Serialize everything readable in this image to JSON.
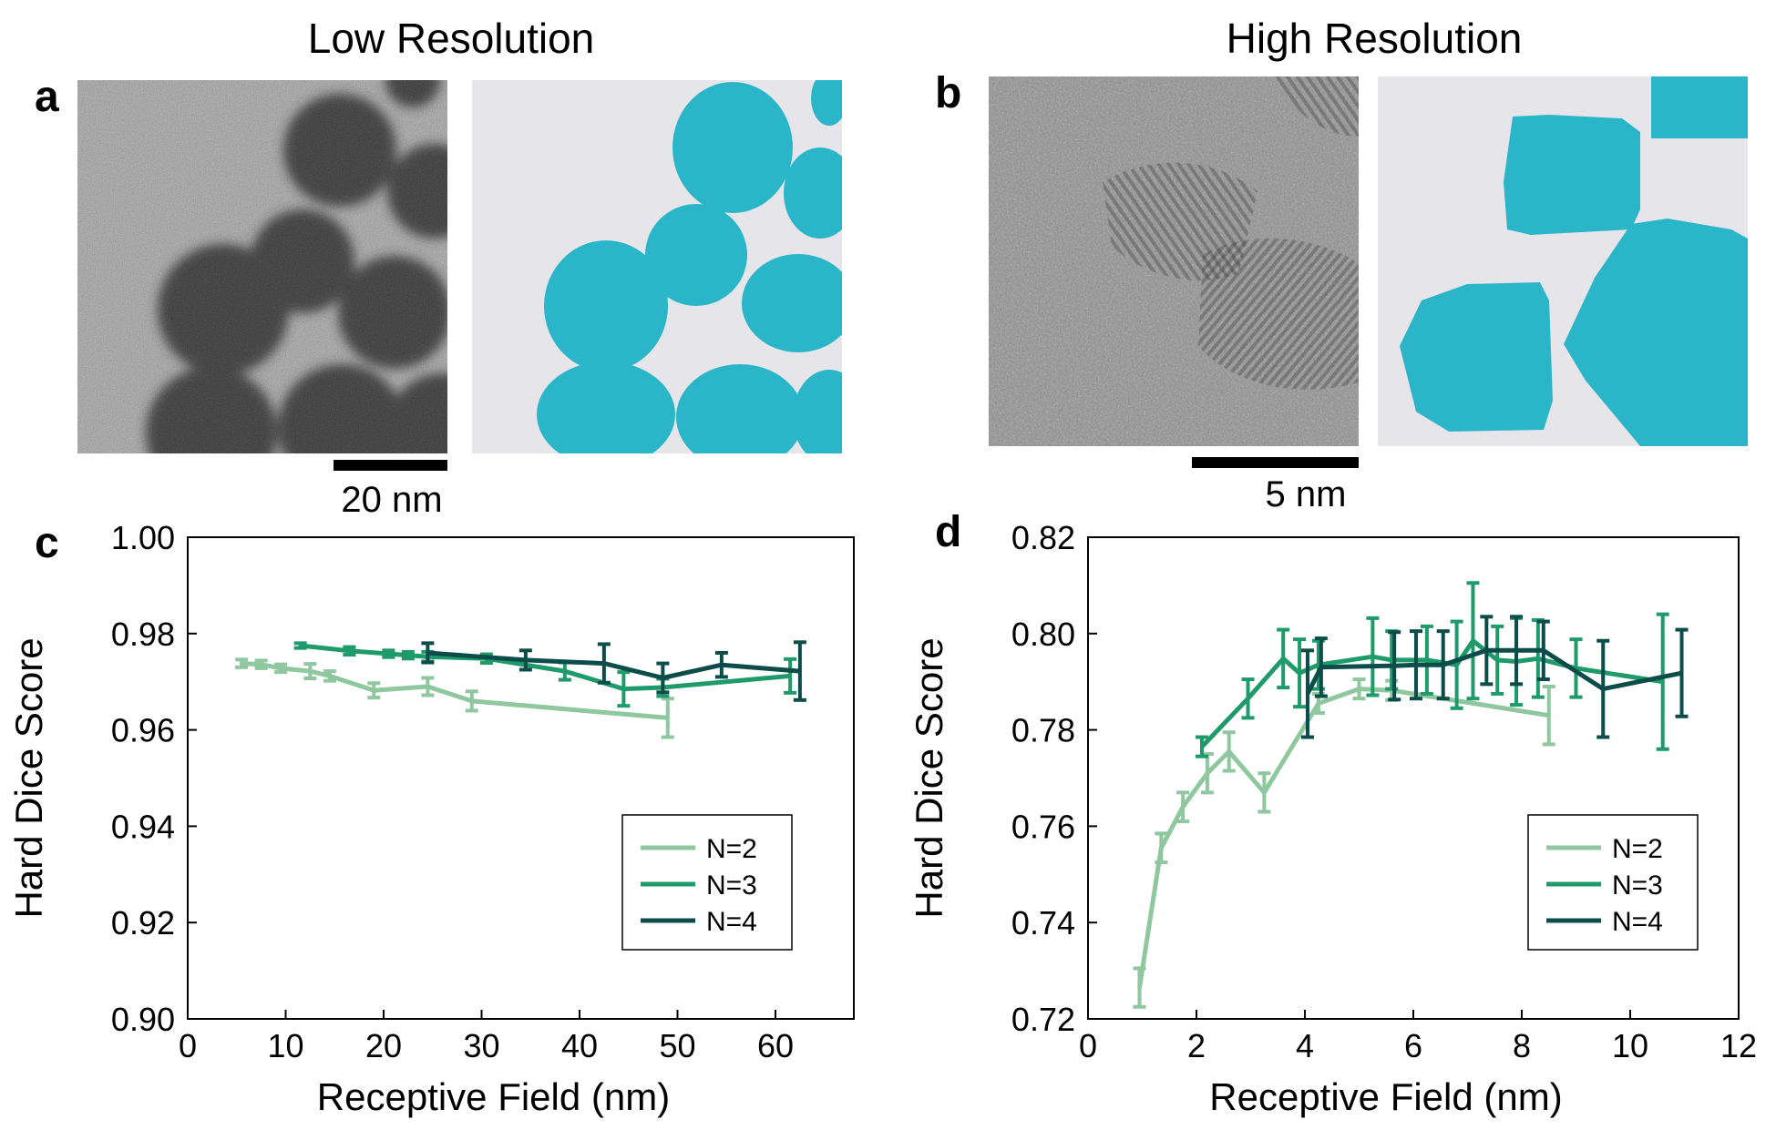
{
  "panels": {
    "a": {
      "letter": "a",
      "title": "Low Resolution",
      "scale_label": "20 nm"
    },
    "b": {
      "letter": "b",
      "title": "High Resolution",
      "scale_label": "5 nm"
    },
    "c": {
      "letter": "c"
    },
    "d": {
      "letter": "d"
    }
  },
  "colors": {
    "N2": "#8fc79f",
    "N3": "#1f9a6a",
    "N4": "#0c4d4a",
    "segmentation_fg": "#2bb5c9",
    "segmentation_bg": "#e6e6ea"
  },
  "chart_data": [
    {
      "id": "c",
      "type": "line",
      "title": "",
      "xlabel": "Receptive Field (nm)",
      "ylabel": "Hard Dice Score",
      "xlim": [
        0,
        68
      ],
      "ylim": [
        0.9,
        1.0
      ],
      "xticks": [
        0,
        10,
        20,
        30,
        40,
        50,
        60
      ],
      "xtick_labels": [
        "0",
        "10",
        "20",
        "30",
        "40",
        "50",
        "60"
      ],
      "yticks": [
        0.9,
        0.92,
        0.94,
        0.96,
        0.98,
        1.0
      ],
      "ytick_labels": [
        "0.90",
        "0.92",
        "0.94",
        "0.96",
        "0.98",
        "1.00"
      ],
      "legend": {
        "position": "lower-right",
        "entries": [
          "N=2",
          "N=3",
          "N=4"
        ]
      },
      "series": [
        {
          "name": "N=2",
          "color_key": "N2",
          "x": [
            5.5,
            7.5,
            9.5,
            12.5,
            14.5,
            19,
            24.5,
            29,
            49
          ],
          "y": [
            0.9738,
            0.9736,
            0.9728,
            0.9722,
            0.9712,
            0.9682,
            0.969,
            0.966,
            0.9625
          ],
          "err": [
            0.0008,
            0.0008,
            0.0008,
            0.0015,
            0.001,
            0.0015,
            0.0018,
            0.002,
            0.004
          ]
        },
        {
          "name": "N=3",
          "color_key": "N3",
          "x": [
            11.5,
            16.5,
            20.5,
            22.5,
            24.5,
            30.5,
            38.5,
            44.5,
            48.5,
            61.5
          ],
          "y": [
            0.9775,
            0.9764,
            0.9758,
            0.9755,
            0.9752,
            0.9748,
            0.9722,
            0.9685,
            0.9688,
            0.9712
          ],
          "err": [
            0.0005,
            0.0008,
            0.0007,
            0.0007,
            0.001,
            0.0009,
            0.0018,
            0.0035,
            0.0018,
            0.0035
          ]
        },
        {
          "name": "N=4",
          "color_key": "N4",
          "x": [
            24.5,
            34.5,
            42.5,
            48.5,
            54.5,
            62.5
          ],
          "y": [
            0.976,
            0.9745,
            0.9738,
            0.9708,
            0.9735,
            0.9722
          ],
          "err": [
            0.002,
            0.002,
            0.004,
            0.003,
            0.0025,
            0.006
          ]
        }
      ]
    },
    {
      "id": "d",
      "type": "line",
      "title": "",
      "xlabel": "Receptive Field (nm)",
      "ylabel": "Hard Dice Score",
      "xlim": [
        0,
        12
      ],
      "ylim": [
        0.72,
        0.82
      ],
      "xticks": [
        0,
        2,
        4,
        6,
        8,
        10,
        12
      ],
      "xtick_labels": [
        "0",
        "2",
        "4",
        "6",
        "8",
        "10",
        "12"
      ],
      "yticks": [
        0.72,
        0.74,
        0.76,
        0.78,
        0.8,
        0.82
      ],
      "ytick_labels": [
        "0.72",
        "0.74",
        "0.76",
        "0.78",
        "0.80",
        "0.82"
      ],
      "legend": {
        "position": "lower-right",
        "entries": [
          "N=2",
          "N=3",
          "N=4"
        ]
      },
      "series": [
        {
          "name": "N=2",
          "color_key": "N2",
          "x": [
            0.95,
            1.35,
            1.75,
            2.2,
            2.6,
            3.25,
            4.25,
            5.0,
            5.6,
            8.5
          ],
          "y": [
            0.7265,
            0.7555,
            0.764,
            0.771,
            0.7755,
            0.767,
            0.7855,
            0.7885,
            0.7882,
            0.783
          ],
          "err": [
            0.004,
            0.003,
            0.003,
            0.004,
            0.004,
            0.004,
            0.002,
            0.002,
            0.002,
            0.006
          ]
        },
        {
          "name": "N=3",
          "color_key": "N3",
          "x": [
            2.1,
            2.95,
            3.6,
            3.9,
            4.25,
            5.25,
            5.6,
            6.25,
            6.8,
            7.1,
            7.55,
            7.9,
            8.3,
            9.0,
            10.6
          ],
          "y": [
            0.7765,
            0.7865,
            0.7948,
            0.7918,
            0.7935,
            0.7952,
            0.7945,
            0.7945,
            0.7935,
            0.7985,
            0.7945,
            0.7942,
            0.7948,
            0.7928,
            0.79
          ],
          "err": [
            0.002,
            0.004,
            0.006,
            0.007,
            0.005,
            0.008,
            0.006,
            0.007,
            0.009,
            0.012,
            0.007,
            0.009,
            0.008,
            0.006,
            0.014
          ]
        },
        {
          "name": "N=4",
          "color_key": "N4",
          "x": [
            4.05,
            4.3,
            5.65,
            6.05,
            6.55,
            7.35,
            7.9,
            8.4,
            9.5,
            10.95
          ],
          "y": [
            0.7875,
            0.793,
            0.7933,
            0.7935,
            0.7935,
            0.7965,
            0.7965,
            0.7965,
            0.7885,
            0.7918
          ],
          "err": [
            0.009,
            0.006,
            0.007,
            0.007,
            0.007,
            0.007,
            0.007,
            0.006,
            0.01,
            0.009
          ]
        }
      ]
    }
  ]
}
